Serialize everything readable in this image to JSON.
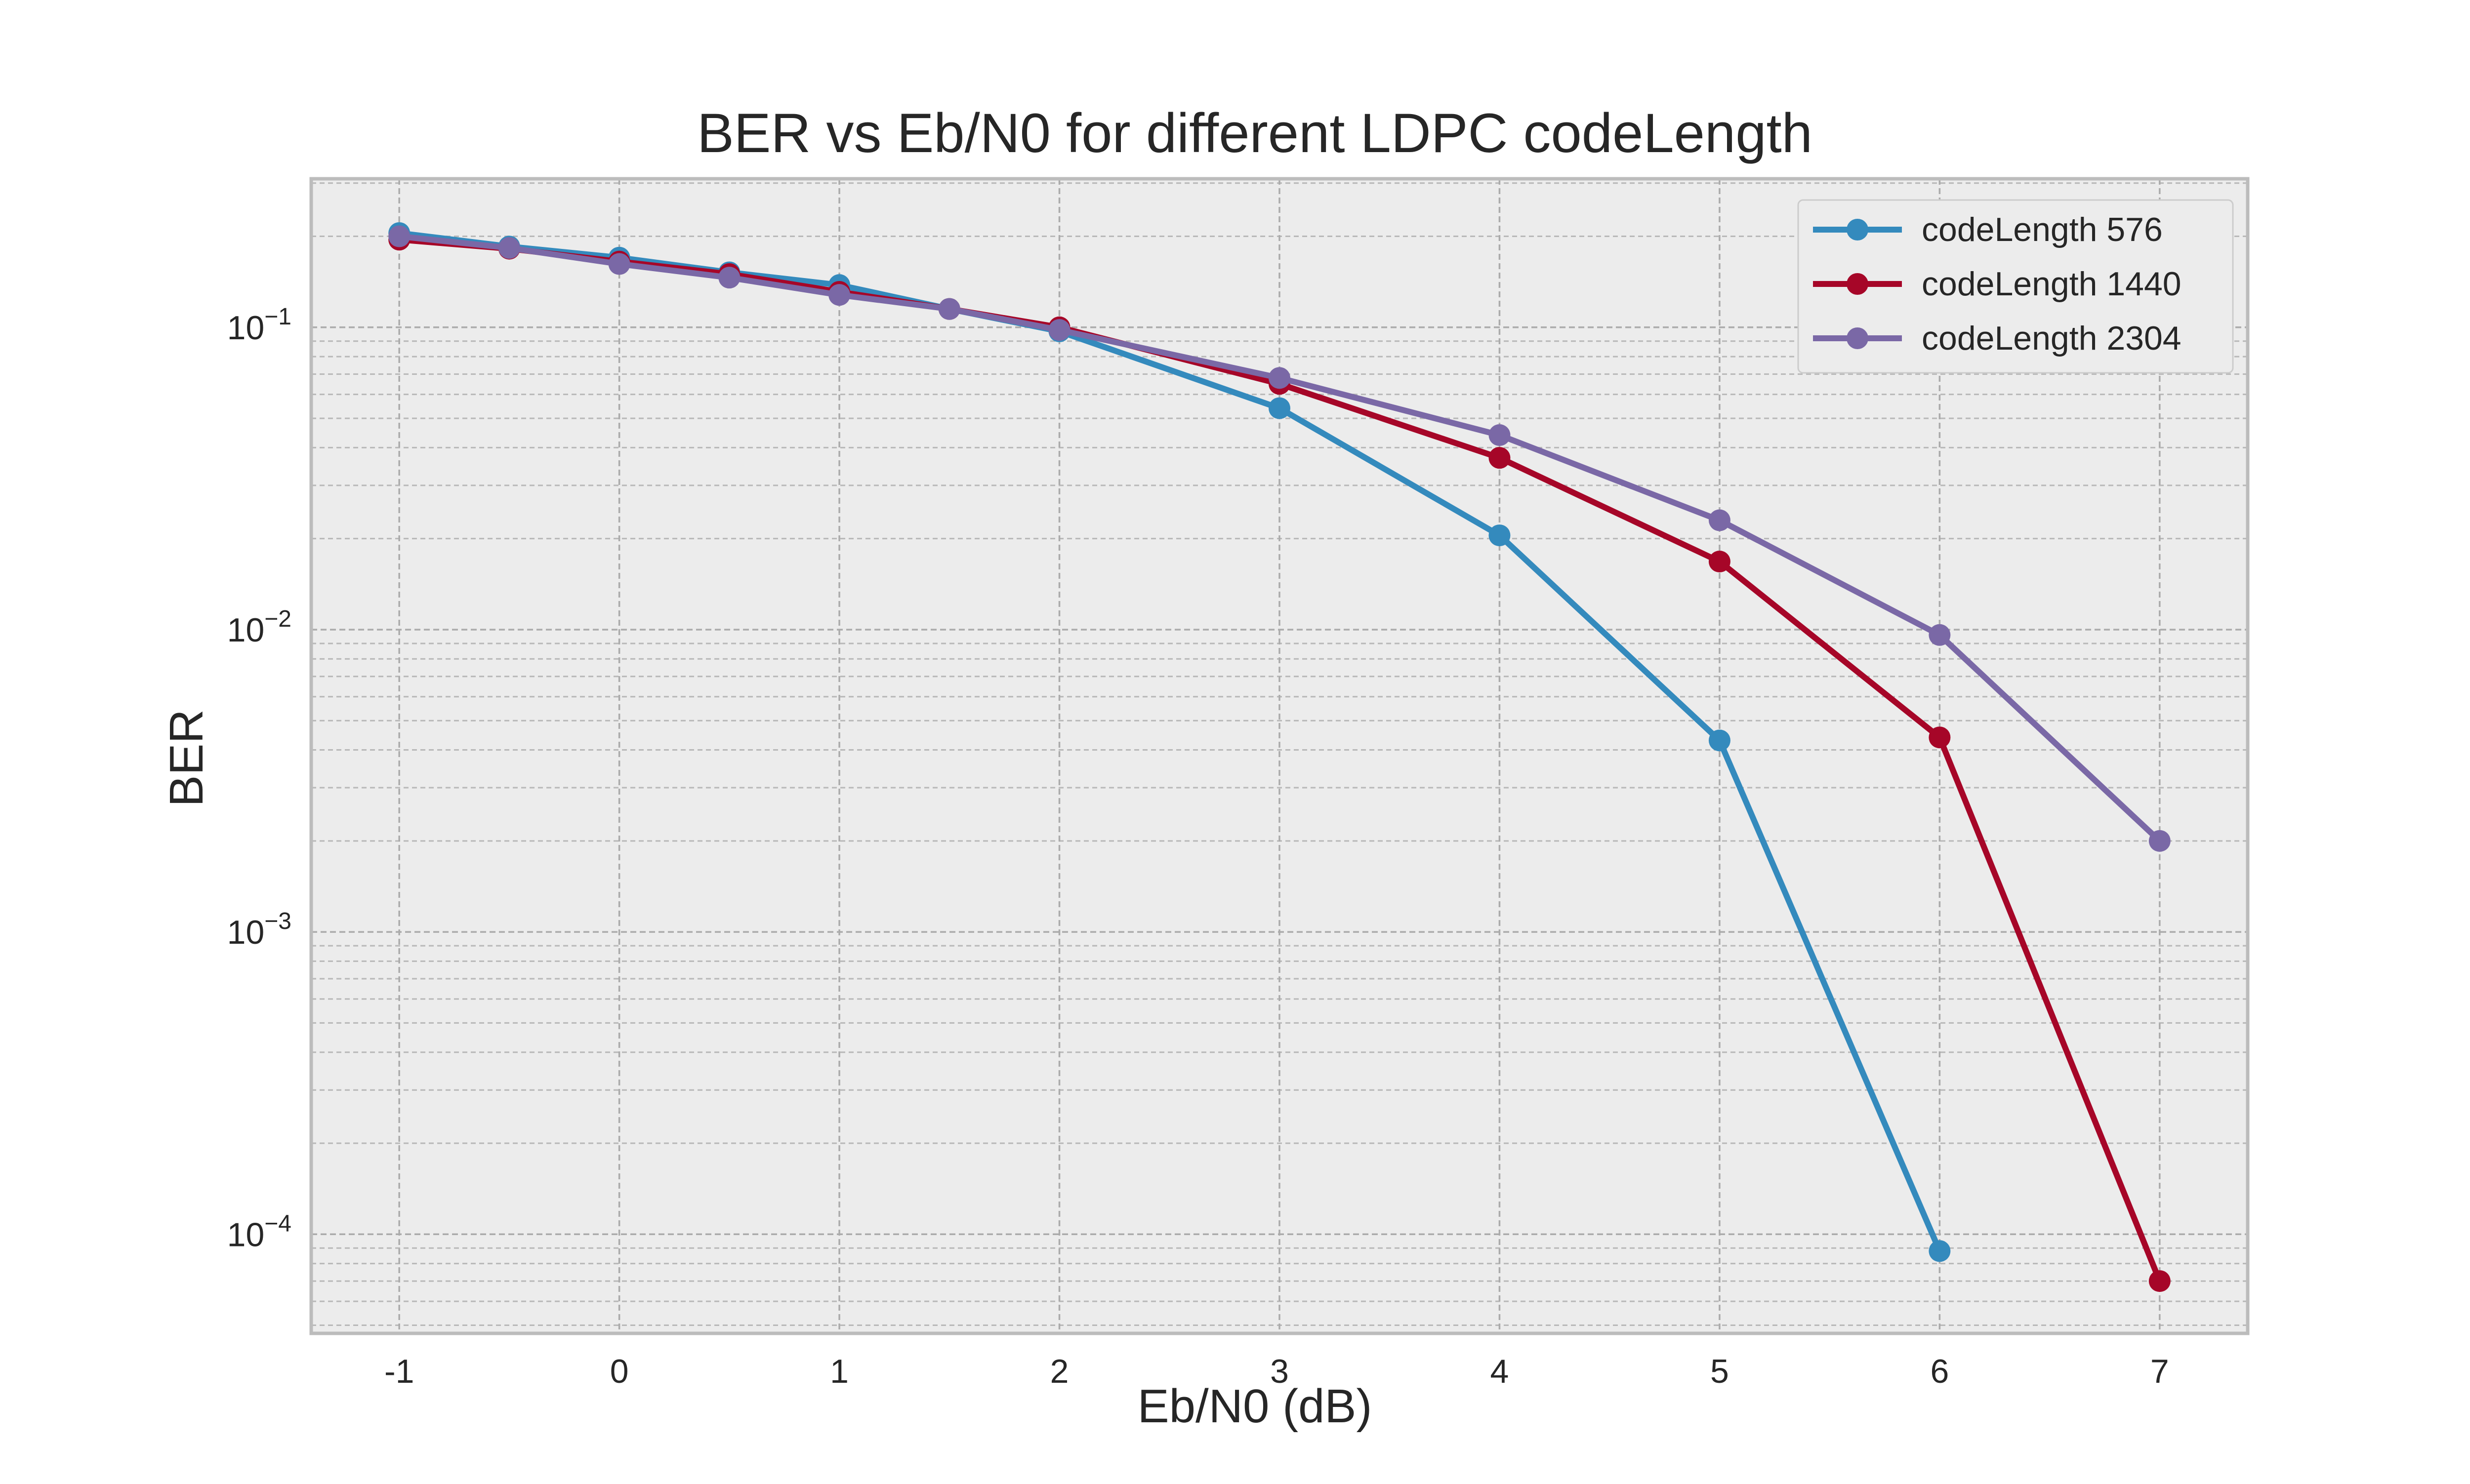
{
  "chart_data": {
    "type": "line",
    "title": "BER vs Eb/N0 for different LDPC codeLength",
    "xlabel": "Eb/N0 (dB)",
    "ylabel": "BER",
    "y_scale": "log",
    "xlim": [
      -1.4,
      7.4
    ],
    "ylim": [
      4.7e-05,
      0.31
    ],
    "x_ticks": [
      -1,
      0,
      1,
      2,
      3,
      4,
      5,
      6,
      7
    ],
    "y_ticks": [
      {
        "value": 0.1,
        "base": "10",
        "exp": "−1"
      },
      {
        "value": 0.01,
        "base": "10",
        "exp": "−2"
      },
      {
        "value": 0.001,
        "base": "10",
        "exp": "−3"
      },
      {
        "value": 0.0001,
        "base": "10",
        "exp": "−4"
      }
    ],
    "grid": true,
    "legend_position": "top-right",
    "series": [
      {
        "name": "codeLength 576",
        "color": "#348abd",
        "points": [
          [
            -1,
            0.205
          ],
          [
            -0.5,
            0.185
          ],
          [
            0,
            0.17
          ],
          [
            0.5,
            0.152
          ],
          [
            1,
            0.138
          ],
          [
            1.5,
            0.115
          ],
          [
            2,
            0.097
          ],
          [
            3,
            0.054
          ],
          [
            4,
            0.0205
          ],
          [
            5,
            0.0043
          ],
          [
            6,
            8.8e-05
          ]
        ]
      },
      {
        "name": "codeLength 1440",
        "color": "#a60628",
        "points": [
          [
            -1,
            0.195
          ],
          [
            -0.5,
            0.182
          ],
          [
            0,
            0.165
          ],
          [
            0.5,
            0.15
          ],
          [
            1,
            0.131
          ],
          [
            1.5,
            0.115
          ],
          [
            2,
            0.1
          ],
          [
            3,
            0.065
          ],
          [
            4,
            0.037
          ],
          [
            5,
            0.0168
          ],
          [
            6,
            0.0044
          ],
          [
            7,
            7e-05
          ]
        ]
      },
      {
        "name": "codeLength 2304",
        "color": "#7a68a6",
        "points": [
          [
            -1,
            0.2
          ],
          [
            -0.5,
            0.183
          ],
          [
            0,
            0.162
          ],
          [
            0.5,
            0.146
          ],
          [
            1,
            0.128
          ],
          [
            1.5,
            0.115
          ],
          [
            2,
            0.098
          ],
          [
            3,
            0.068
          ],
          [
            4,
            0.044
          ],
          [
            5,
            0.023
          ],
          [
            6,
            0.0096
          ],
          [
            7,
            0.002
          ]
        ]
      }
    ]
  }
}
